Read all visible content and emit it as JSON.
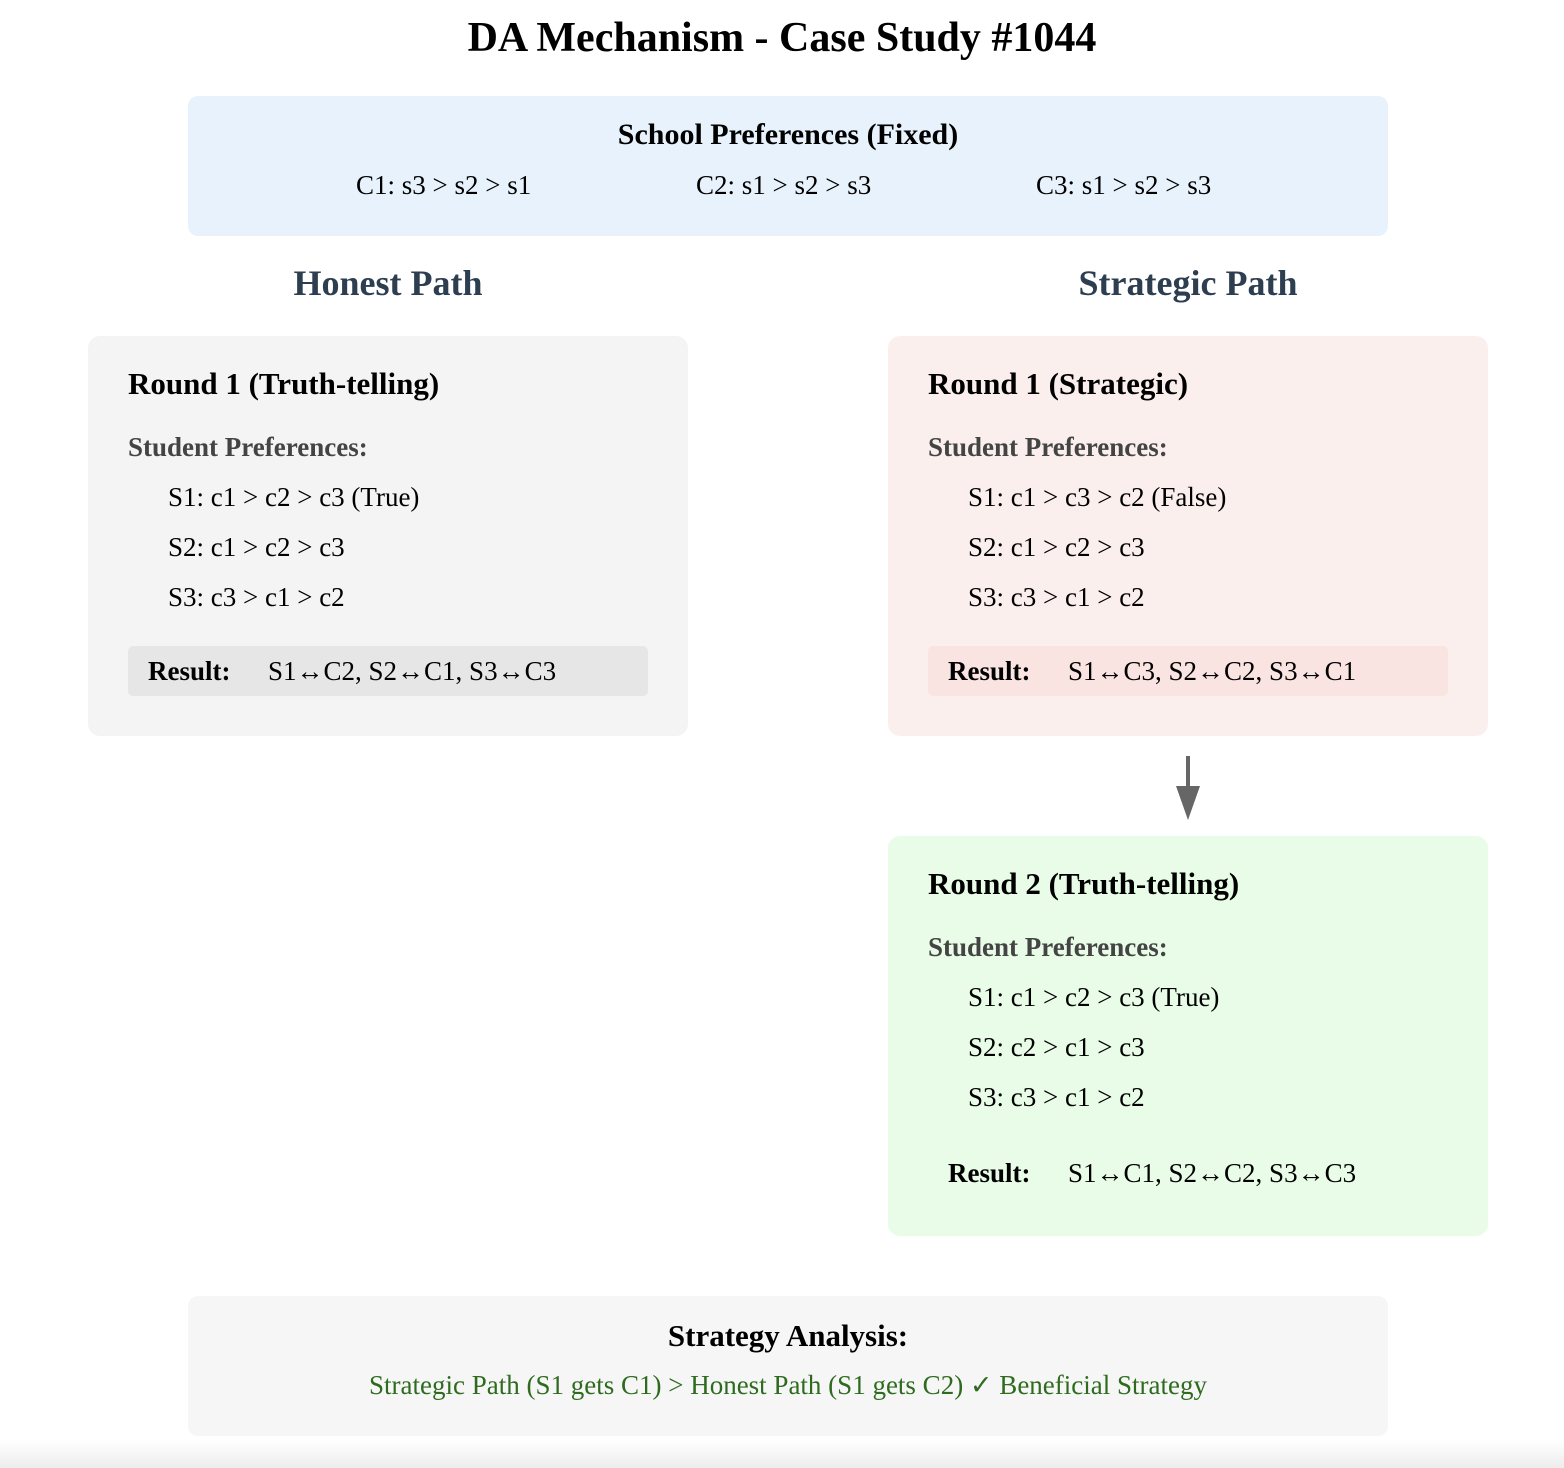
{
  "title": "DA Mechanism - Case Study #1044",
  "school_preferences": {
    "title": "School Preferences (Fixed)",
    "items": [
      "C1: s3 > s2 > s1",
      "C2: s1 > s2 > s3",
      "C3: s1 > s2 > s3"
    ]
  },
  "honest_path": {
    "heading": "Honest Path",
    "round1": {
      "title": "Round 1 (Truth-telling)",
      "prefs_label": "Student Preferences:",
      "prefs": [
        "S1: c1 > c2 > c3 (True)",
        "S2: c1 > c2 > c3",
        "S3: c3 > c1 > c2"
      ],
      "result_label": "Result:",
      "result": "S1↔C2, S2↔C1, S3↔C3"
    }
  },
  "strategic_path": {
    "heading": "Strategic Path",
    "round1": {
      "title": "Round 1 (Strategic)",
      "prefs_label": "Student Preferences:",
      "prefs": [
        "S1: c1 > c3 > c2 (False)",
        "S2: c1 > c2 > c3",
        "S3: c3 > c1 > c2"
      ],
      "result_label": "Result:",
      "result": "S1↔C3, S2↔C2, S3↔C1"
    },
    "round2": {
      "title": "Round 2 (Truth-telling)",
      "prefs_label": "Student Preferences:",
      "prefs": [
        "S1: c1 > c2 > c3 (True)",
        "S2: c2 > c1 > c3",
        "S3: c3 > c1 > c2"
      ],
      "result_label": "Result:",
      "result": "S1↔C1, S2↔C2, S3↔C3"
    }
  },
  "analysis": {
    "title": "Strategy Analysis:",
    "text": "Strategic Path (S1 gets C1) > Honest Path (S1 gets C2) ✓ Beneficial Strategy"
  },
  "colors": {
    "school_bg": "#e8f2fc",
    "honest_bg": "#f4f4f4",
    "strategic_bg": "#fbefed",
    "round2_bg": "#e8fce8",
    "heading": "#2c3e50",
    "analysis_text": "#2e6b1f",
    "arrow": "#666666"
  }
}
